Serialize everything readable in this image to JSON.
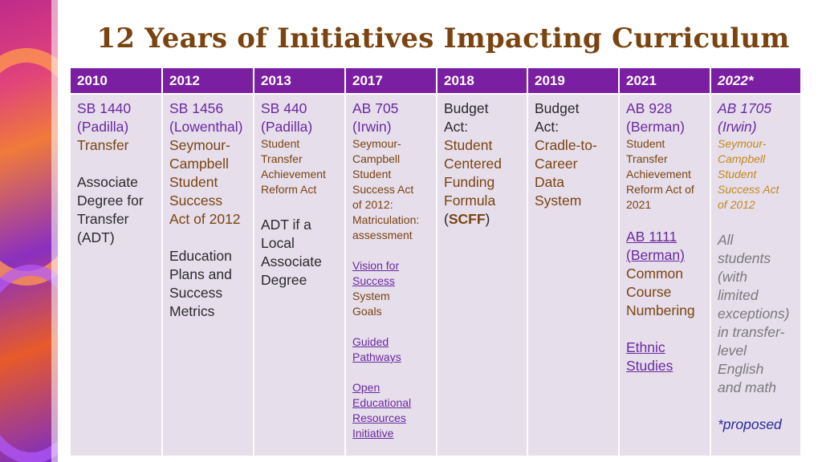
{
  "title": "12 Years of Initiatives Impacting Curriculum",
  "headers": [
    "2010",
    "2012",
    "2013",
    "2017",
    "2018",
    "2019",
    "2021",
    "2022*"
  ],
  "col2010": {
    "link1": "SB 1440",
    "link2": "(Padilla)",
    "text1": "Transfer",
    "text2": "Associate",
    "text3": "Degree for",
    "text4": "Transfer",
    "text5": "(ADT)"
  },
  "col2012": {
    "link1": "SB 1456",
    "link2": "(Lowenthal)",
    "lines": [
      "Seymour-",
      "Campbell",
      "Student",
      "Success",
      "Act of 2012"
    ],
    "lines2": [
      "Education",
      "Plans and",
      "Success",
      "Metrics"
    ]
  },
  "col2013": {
    "link1": "SB 440",
    "link2": "(Padilla)",
    "small": [
      "Student",
      "Transfer",
      "Achievement",
      "Reform Act"
    ],
    "lines": [
      "ADT if a",
      "Local",
      "Associate",
      "Degree"
    ]
  },
  "col2017": {
    "link1": "AB 705",
    "link2": "(Irwin)",
    "small": [
      "Seymour-",
      "Campbell",
      "Student",
      "Success Act",
      "of 2012:",
      "Matriculation:",
      "assessment"
    ],
    "vision": [
      "Vision for",
      "Success"
    ],
    "vision_sub": [
      "System",
      "Goals"
    ],
    "guided": [
      "Guided",
      "Pathways"
    ],
    "oer": [
      "Open",
      "Educational",
      "Resources",
      "Initiative"
    ]
  },
  "col2018": {
    "lines": [
      "Budget",
      "Act:"
    ],
    "lines2": [
      "Student",
      "Centered",
      "Funding",
      "Formula"
    ],
    "paren_open": "(",
    "bold": "SCFF",
    "paren_close": ")"
  },
  "col2019": {
    "lines": [
      "Budget",
      "Act:"
    ],
    "lines2": [
      "Cradle-to-",
      "Career",
      "Data",
      "System"
    ]
  },
  "col2021": {
    "link1": "AB 928",
    "link2": "(Berman)",
    "small": [
      "Student",
      "Transfer",
      "Achievement",
      "Reform Act of",
      "2021"
    ],
    "link3": "AB 1111",
    "link4": "(Berman)",
    "lines": [
      "Common",
      "Course",
      "Numbering"
    ],
    "link5": "Ethnic",
    "link6": "Studies"
  },
  "col2022": {
    "link1": "AB 1705",
    "link2": "(Irwin)",
    "small": [
      "Seymour-",
      "Campbell",
      "Student",
      "Success Act",
      "of 2012"
    ],
    "lines": [
      "All",
      "students",
      "(with",
      "limited",
      "exceptions)",
      "in transfer-",
      "level",
      "English",
      "and math"
    ],
    "note": "*proposed"
  },
  "colors": {
    "header_bg": "#7b1fa2",
    "cell_bg": "#e6deeb",
    "title": "#7a4410",
    "link": "#6a2aa0"
  }
}
